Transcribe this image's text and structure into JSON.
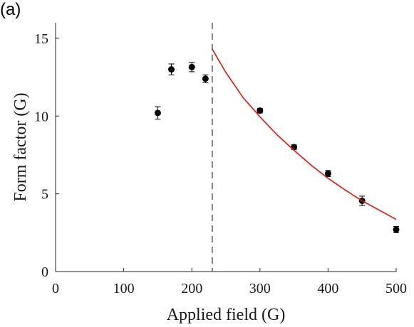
{
  "panel_label": "(a)",
  "chart_data": {
    "type": "scatter",
    "title": "",
    "xlabel": "Applied field (G)",
    "ylabel": "Form factor (G)",
    "xlim": [
      0,
      500
    ],
    "ylim": [
      0,
      16
    ],
    "xticks": [
      "0",
      "100",
      "200",
      "300",
      "400",
      "500"
    ],
    "yticks": [
      "0",
      "5",
      "10",
      "15"
    ],
    "grid": false,
    "series": [
      {
        "kind": "points_with_errorbars",
        "color": "#000000",
        "x": [
          150,
          170,
          200,
          220,
          300,
          350,
          400,
          450,
          500
        ],
        "y": [
          10.2,
          13.0,
          13.15,
          12.4,
          10.35,
          8.0,
          6.3,
          4.55,
          2.7
        ],
        "yerr": [
          0.4,
          0.35,
          0.3,
          0.25,
          0.15,
          0.15,
          0.2,
          0.3,
          0.2
        ]
      },
      {
        "kind": "fit_curve",
        "color": "#e8120c",
        "x": [
          230,
          250,
          275,
          300,
          325,
          350,
          375,
          400,
          425,
          450,
          475,
          500
        ],
        "y": [
          14.3,
          12.8,
          11.2,
          9.95,
          8.8,
          7.8,
          6.85,
          6.0,
          5.25,
          4.55,
          3.95,
          3.35
        ]
      },
      {
        "kind": "vertical_reference_line",
        "color": "#555555",
        "style": "dashed",
        "x": 230
      }
    ]
  }
}
